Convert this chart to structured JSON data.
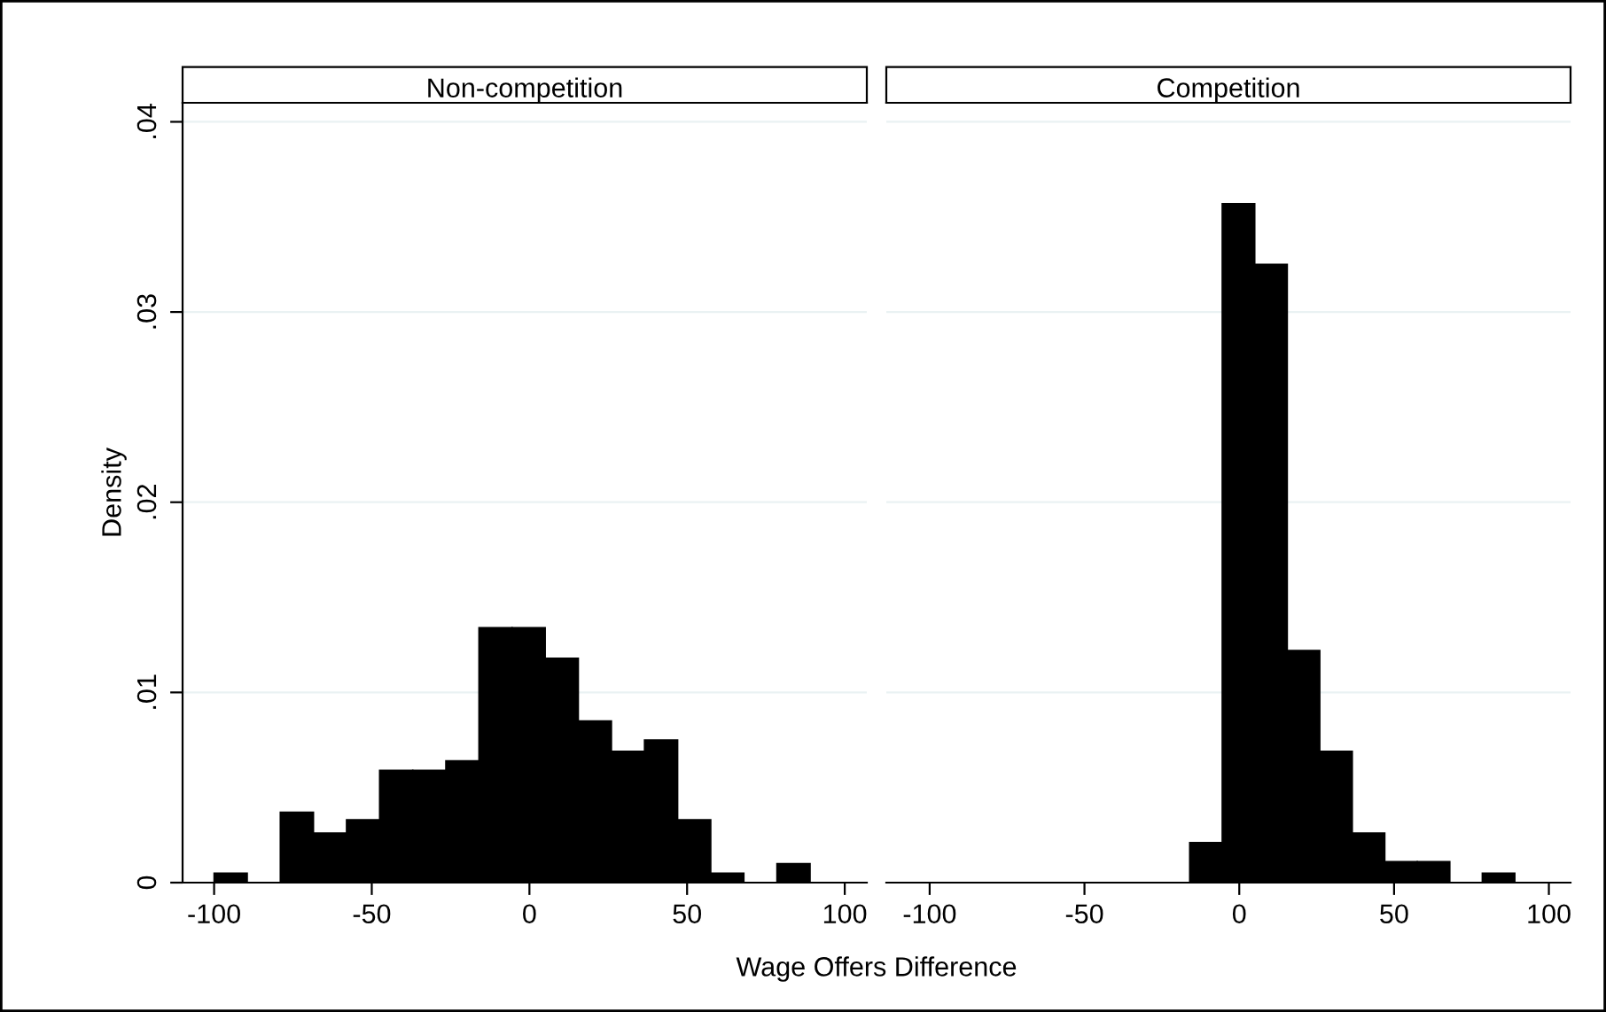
{
  "chart_data": [
    {
      "type": "histogram",
      "title": "Non-competition",
      "xlabel": "Wage Offers Difference",
      "ylabel": "Density",
      "color": "#000000",
      "grid": "y",
      "bins": [
        -100,
        -89.5,
        -79,
        -68.5,
        -58,
        -47.5,
        -37,
        -26.5,
        -16,
        -5.5,
        5,
        15.5,
        26,
        36.5,
        47,
        57.5,
        68,
        78.5,
        89
      ],
      "values": [
        0.0005,
        0,
        0.0037,
        0.0026,
        0.0033,
        0.0059,
        0.0059,
        0.0064,
        0.0134,
        0.0134,
        0.0118,
        0.0085,
        0.0069,
        0.0075,
        0.0033,
        0.0005,
        0,
        0.001
      ],
      "xlim": [
        -110,
        107
      ],
      "xticks": [
        -100,
        -50,
        0,
        50,
        100
      ],
      "ylim": [
        0,
        0.041
      ],
      "yticks": [
        0,
        {
          "value": 0.01,
          "label": ".01"
        },
        {
          "value": 0.02,
          "label": ".02"
        },
        {
          "value": 0.03,
          "label": ".03"
        },
        {
          "value": 0.04,
          "label": ".04"
        }
      ]
    },
    {
      "type": "histogram",
      "title": "Competition",
      "color": "#000000",
      "grid": "y",
      "tick_labels": "x",
      "bins": [
        -100,
        -89.5,
        -79,
        -68.5,
        -58,
        -47.5,
        -37,
        -26.5,
        -16,
        -5.5,
        5,
        15.5,
        26,
        36.5,
        47,
        57.5,
        68,
        78.5,
        89
      ],
      "values": [
        0,
        0,
        0,
        0,
        0,
        0,
        0,
        0,
        0.0021,
        0.0357,
        0.0325,
        0.0122,
        0.0069,
        0.0026,
        0.0011,
        0.0011,
        0,
        0.0005
      ],
      "xlim": [
        -114,
        107
      ],
      "xticks": [
        -100,
        -50,
        0,
        50,
        100
      ],
      "ylim": [
        0,
        0.041
      ],
      "yticks": [
        0,
        0.01,
        0.02,
        0.03,
        0.04
      ]
    }
  ]
}
